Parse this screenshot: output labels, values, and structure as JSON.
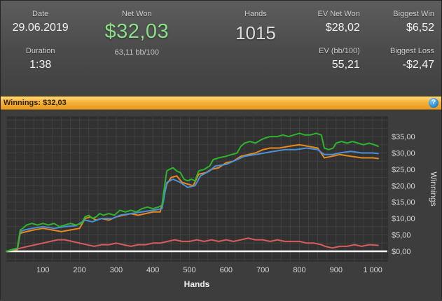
{
  "stats": {
    "date": {
      "label": "Date",
      "value": "29.06.2019"
    },
    "duration": {
      "label": "Duration",
      "value": "1:38"
    },
    "net_won": {
      "label": "Net Won",
      "value": "$32,03",
      "sub": "63,11 bb/100"
    },
    "hands": {
      "label": "Hands",
      "value": "1015"
    },
    "ev_net_won": {
      "label": "EV Net Won",
      "value": "$28,02"
    },
    "ev_bb100": {
      "label": "EV (bb/100)",
      "value": "55,21"
    },
    "biggest_win": {
      "label": "Biggest Win",
      "value": "$6,52"
    },
    "biggest_loss": {
      "label": "Biggest Loss",
      "value": "-$2,47"
    }
  },
  "winnings_bar": {
    "title": "Winnings: $32,03",
    "help_icon": "?"
  },
  "colors": {
    "net_won_green": "#8ce08a",
    "winnings_bar_orange": "#f5b13a",
    "help_icon_blue": "#2f8fd6",
    "panel_gray": "#4a4a4a"
  },
  "chart_data": {
    "type": "line",
    "title": "Winnings: $32,03",
    "xlabel": "Hands",
    "ylabel": "Winnings",
    "x_range": [
      0,
      1040
    ],
    "y_range": [
      -3,
      41
    ],
    "grid": {
      "on": true,
      "x_step": 25,
      "y_step": 2.5
    },
    "legend": "none",
    "zero_line": {
      "value": 0,
      "color": "#ffffff"
    },
    "colors": {
      "plot_bg": "#313131",
      "plot_border": "#272727",
      "grid": "#404040",
      "tick_text": "#d6d6d6",
      "axis_title": "#f0f0f0"
    },
    "x_ticks": [
      {
        "v": 100,
        "label": "100"
      },
      {
        "v": 200,
        "label": "200"
      },
      {
        "v": 300,
        "label": "300"
      },
      {
        "v": 400,
        "label": "400"
      },
      {
        "v": 500,
        "label": "500"
      },
      {
        "v": 600,
        "label": "600"
      },
      {
        "v": 700,
        "label": "700"
      },
      {
        "v": 800,
        "label": "800"
      },
      {
        "v": 900,
        "label": "900"
      },
      {
        "v": 1000,
        "label": "1 000"
      }
    ],
    "y_ticks": [
      {
        "v": 35,
        "label": "$35,00"
      },
      {
        "v": 30,
        "label": "$30,00"
      },
      {
        "v": 25,
        "label": "$25,00"
      },
      {
        "v": 20,
        "label": "$20,00"
      },
      {
        "v": 15,
        "label": "$15,00"
      },
      {
        "v": 10,
        "label": "$10,00"
      },
      {
        "v": 5,
        "label": "$5,00"
      },
      {
        "v": 0,
        "label": "$0,00"
      }
    ],
    "series": [
      {
        "name": "red-line",
        "color": "#d95c5c",
        "points": [
          [
            0,
            0
          ],
          [
            20,
            0.5
          ],
          [
            40,
            1
          ],
          [
            60,
            1.5
          ],
          [
            80,
            2
          ],
          [
            100,
            2.5
          ],
          [
            120,
            3
          ],
          [
            140,
            3.5
          ],
          [
            160,
            3.5
          ],
          [
            180,
            3
          ],
          [
            200,
            2.5
          ],
          [
            220,
            2
          ],
          [
            240,
            1.5
          ],
          [
            260,
            2
          ],
          [
            280,
            2
          ],
          [
            300,
            2.5
          ],
          [
            320,
            2
          ],
          [
            340,
            1.5
          ],
          [
            360,
            2
          ],
          [
            380,
            2
          ],
          [
            400,
            2.5
          ],
          [
            420,
            2.5
          ],
          [
            440,
            3
          ],
          [
            460,
            3.5
          ],
          [
            480,
            3
          ],
          [
            500,
            3
          ],
          [
            520,
            3.5
          ],
          [
            540,
            3
          ],
          [
            560,
            3.5
          ],
          [
            580,
            3
          ],
          [
            600,
            3.5
          ],
          [
            620,
            3
          ],
          [
            640,
            3.5
          ],
          [
            660,
            4
          ],
          [
            680,
            3.5
          ],
          [
            700,
            3.5
          ],
          [
            720,
            3
          ],
          [
            740,
            3.5
          ],
          [
            760,
            3
          ],
          [
            780,
            3
          ],
          [
            800,
            3
          ],
          [
            820,
            2.5
          ],
          [
            840,
            2.5
          ],
          [
            860,
            2
          ],
          [
            870,
            1.5
          ],
          [
            890,
            1
          ],
          [
            910,
            1.5
          ],
          [
            930,
            1.5
          ],
          [
            950,
            2
          ],
          [
            970,
            1.5
          ],
          [
            990,
            2
          ],
          [
            1015,
            1.8
          ]
        ]
      },
      {
        "name": "orange-line",
        "color": "#e8891c",
        "points": [
          [
            0,
            0
          ],
          [
            30,
            0.5
          ],
          [
            38,
            5.5
          ],
          [
            55,
            6
          ],
          [
            75,
            6.5
          ],
          [
            100,
            7
          ],
          [
            125,
            6.5
          ],
          [
            150,
            6
          ],
          [
            175,
            6.5
          ],
          [
            200,
            7
          ],
          [
            215,
            10
          ],
          [
            230,
            10.5
          ],
          [
            245,
            9.5
          ],
          [
            260,
            10
          ],
          [
            280,
            9.5
          ],
          [
            300,
            10.5
          ],
          [
            320,
            11
          ],
          [
            340,
            11.5
          ],
          [
            360,
            11
          ],
          [
            380,
            11.5
          ],
          [
            400,
            12
          ],
          [
            420,
            12
          ],
          [
            438,
            20.5
          ],
          [
            450,
            22.5
          ],
          [
            465,
            23
          ],
          [
            480,
            21
          ],
          [
            495,
            20.5
          ],
          [
            510,
            20
          ],
          [
            525,
            23.5
          ],
          [
            545,
            24
          ],
          [
            560,
            25
          ],
          [
            580,
            25.5
          ],
          [
            600,
            27
          ],
          [
            620,
            27.5
          ],
          [
            640,
            29
          ],
          [
            660,
            29.5
          ],
          [
            680,
            30
          ],
          [
            700,
            31
          ],
          [
            720,
            31.5
          ],
          [
            745,
            31.5
          ],
          [
            770,
            32
          ],
          [
            800,
            32.5
          ],
          [
            825,
            32
          ],
          [
            850,
            31.5
          ],
          [
            868,
            28.5
          ],
          [
            890,
            29
          ],
          [
            910,
            29.5
          ],
          [
            940,
            29
          ],
          [
            970,
            28.5
          ],
          [
            1000,
            28.5
          ],
          [
            1015,
            28.3
          ]
        ]
      },
      {
        "name": "blue-line",
        "color": "#4a90d9",
        "points": [
          [
            0,
            0
          ],
          [
            30,
            0.8
          ],
          [
            38,
            6
          ],
          [
            50,
            6.5
          ],
          [
            70,
            7
          ],
          [
            100,
            7.5
          ],
          [
            130,
            7
          ],
          [
            160,
            7.5
          ],
          [
            190,
            7.8
          ],
          [
            215,
            9.5
          ],
          [
            235,
            9
          ],
          [
            260,
            10
          ],
          [
            290,
            10
          ],
          [
            310,
            11
          ],
          [
            340,
            11.5
          ],
          [
            370,
            12
          ],
          [
            400,
            12.5
          ],
          [
            425,
            13
          ],
          [
            438,
            21
          ],
          [
            455,
            22
          ],
          [
            475,
            21
          ],
          [
            495,
            19.5
          ],
          [
            515,
            20
          ],
          [
            530,
            23
          ],
          [
            555,
            24.5
          ],
          [
            570,
            26
          ],
          [
            600,
            26.5
          ],
          [
            630,
            28
          ],
          [
            650,
            29
          ],
          [
            680,
            29.5
          ],
          [
            705,
            30
          ],
          [
            730,
            30.5
          ],
          [
            760,
            31
          ],
          [
            790,
            31
          ],
          [
            820,
            31.5
          ],
          [
            850,
            31
          ],
          [
            868,
            29.5
          ],
          [
            890,
            29.5
          ],
          [
            910,
            30
          ],
          [
            940,
            30.5
          ],
          [
            970,
            30
          ],
          [
            1000,
            30
          ],
          [
            1015,
            29.8
          ]
        ]
      },
      {
        "name": "green-line",
        "color": "#2db42d",
        "points": [
          [
            0,
            0
          ],
          [
            15,
            0.5
          ],
          [
            30,
            1
          ],
          [
            38,
            6.5
          ],
          [
            45,
            7
          ],
          [
            55,
            8
          ],
          [
            70,
            8.5
          ],
          [
            85,
            8
          ],
          [
            100,
            8.5
          ],
          [
            115,
            8
          ],
          [
            130,
            8.5
          ],
          [
            145,
            7.5
          ],
          [
            160,
            8
          ],
          [
            175,
            8.5
          ],
          [
            190,
            8
          ],
          [
            205,
            8.5
          ],
          [
            215,
            10.5
          ],
          [
            225,
            11
          ],
          [
            235,
            10
          ],
          [
            245,
            10.5
          ],
          [
            255,
            11.5
          ],
          [
            265,
            11
          ],
          [
            280,
            11.5
          ],
          [
            295,
            11
          ],
          [
            310,
            12.5
          ],
          [
            325,
            12
          ],
          [
            340,
            12.5
          ],
          [
            355,
            12
          ],
          [
            370,
            13
          ],
          [
            385,
            13.5
          ],
          [
            400,
            13
          ],
          [
            415,
            13.5
          ],
          [
            425,
            14
          ],
          [
            432,
            20
          ],
          [
            438,
            24.5
          ],
          [
            445,
            25
          ],
          [
            455,
            25.5
          ],
          [
            465,
            24.5
          ],
          [
            475,
            24
          ],
          [
            485,
            22
          ],
          [
            495,
            21.5
          ],
          [
            505,
            22
          ],
          [
            515,
            21.5
          ],
          [
            525,
            24.5
          ],
          [
            540,
            25
          ],
          [
            555,
            26
          ],
          [
            565,
            28
          ],
          [
            580,
            28.5
          ],
          [
            600,
            29
          ],
          [
            615,
            29.5
          ],
          [
            630,
            30
          ],
          [
            640,
            32
          ],
          [
            650,
            33
          ],
          [
            665,
            33.5
          ],
          [
            680,
            33
          ],
          [
            695,
            34
          ],
          [
            705,
            34.5
          ],
          [
            720,
            35
          ],
          [
            740,
            35
          ],
          [
            755,
            35.5
          ],
          [
            770,
            35
          ],
          [
            785,
            35.5
          ],
          [
            800,
            36
          ],
          [
            815,
            35.5
          ],
          [
            830,
            35.5
          ],
          [
            845,
            36
          ],
          [
            860,
            35.5
          ],
          [
            868,
            31.5
          ],
          [
            880,
            31
          ],
          [
            892,
            31.5
          ],
          [
            900,
            33
          ],
          [
            915,
            33.5
          ],
          [
            930,
            33
          ],
          [
            945,
            33.5
          ],
          [
            960,
            33
          ],
          [
            975,
            32.5
          ],
          [
            990,
            33
          ],
          [
            1005,
            32.5
          ],
          [
            1015,
            32
          ]
        ]
      }
    ]
  }
}
